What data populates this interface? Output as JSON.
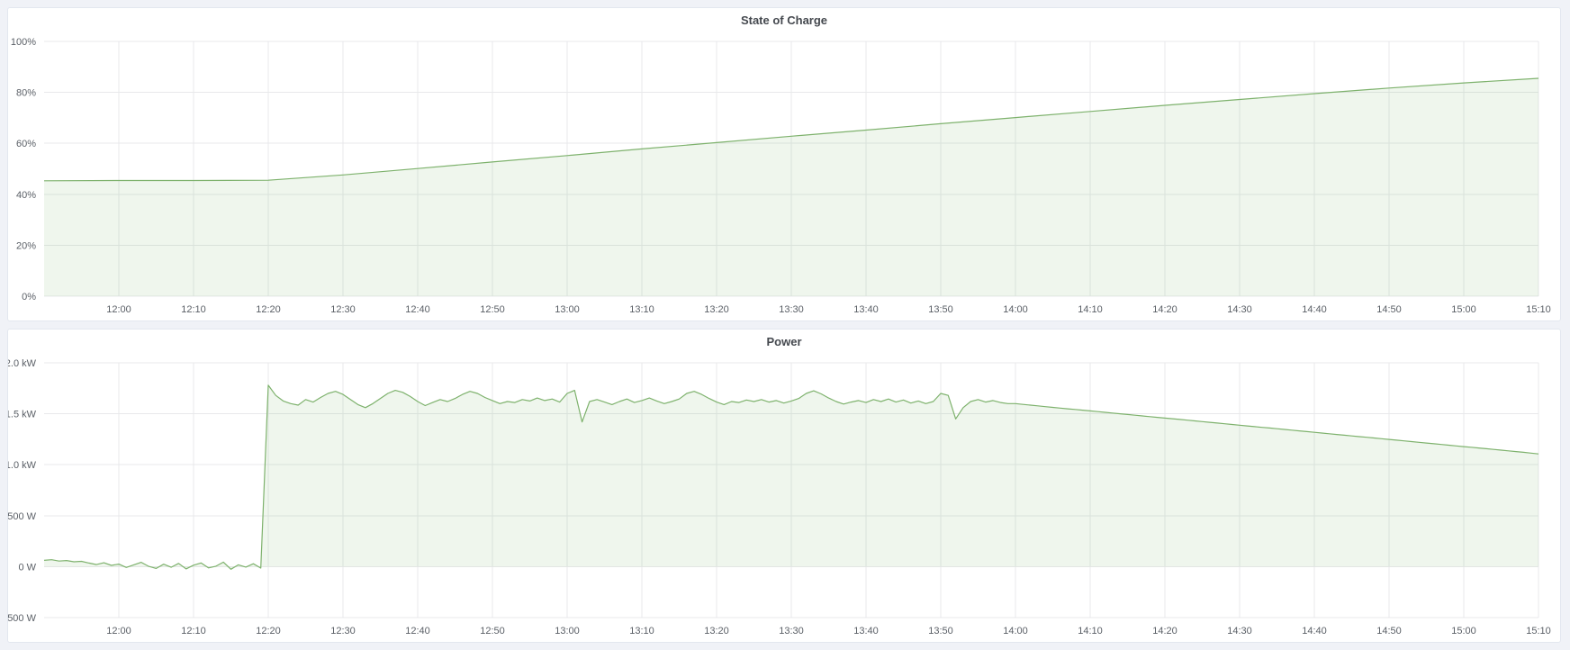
{
  "accent_color": "#7EB26D",
  "chart_data": [
    {
      "type": "area",
      "title": "State of Charge",
      "xlabel": "",
      "ylabel": "",
      "x_start": "11:50",
      "x_end": "15:10",
      "x_tick_labels": [
        "12:00",
        "12:10",
        "12:20",
        "12:30",
        "12:40",
        "12:50",
        "13:00",
        "13:10",
        "13:20",
        "13:30",
        "13:40",
        "13:50",
        "14:00",
        "14:10",
        "14:20",
        "14:30",
        "14:40",
        "14:50",
        "15:00",
        "15:10"
      ],
      "y_range": [
        0,
        100
      ],
      "y_ticks": {
        "labels": [
          "0%",
          "20%",
          "40%",
          "60%",
          "80%",
          "100%"
        ],
        "values": [
          0,
          20,
          40,
          60,
          80,
          100
        ]
      },
      "grid": true,
      "legend": false,
      "series": [
        {
          "name": "State of Charge",
          "unit": "%",
          "t0": "11:50",
          "step_min": 10,
          "color": "#7EB26D",
          "fill_opacity": 0.12,
          "fill_baseline": 0,
          "values": [
            45.3,
            45.4,
            45.4,
            45.5,
            47.6,
            50.1,
            52.7,
            55.2,
            57.8,
            60.3,
            62.8,
            65.2,
            67.7,
            70.1,
            72.5,
            74.9,
            77.2,
            79.5,
            81.7,
            83.7,
            85.5
          ]
        }
      ]
    },
    {
      "type": "area",
      "title": "Power",
      "xlabel": "",
      "ylabel": "",
      "x_start": "11:50",
      "x_end": "15:10",
      "x_tick_labels": [
        "12:00",
        "12:10",
        "12:20",
        "12:30",
        "12:40",
        "12:50",
        "13:00",
        "13:10",
        "13:20",
        "13:30",
        "13:40",
        "13:50",
        "14:00",
        "14:10",
        "14:20",
        "14:30",
        "14:40",
        "14:50",
        "15:00",
        "15:10"
      ],
      "y_range": [
        -500,
        2000
      ],
      "y_ticks": {
        "labels": [
          "-500 W",
          "0 W",
          "500 W",
          "1.0 kW",
          "1.5 kW",
          "2.0 kW"
        ],
        "values": [
          -500,
          0,
          500,
          1000,
          1500,
          2000
        ]
      },
      "grid": true,
      "legend": false,
      "series": [
        {
          "name": "Power",
          "unit": "W",
          "t0": "11:50",
          "step_min": 1,
          "color": "#7EB26D",
          "fill_opacity": 0.12,
          "fill_baseline": 0,
          "values": [
            62,
            68,
            55,
            60,
            48,
            52,
            35,
            20,
            38,
            12,
            25,
            -8,
            18,
            42,
            3,
            -18,
            24,
            -6,
            32,
            -22,
            14,
            36,
            -12,
            4,
            44,
            -26,
            18,
            -4,
            28,
            -14,
            1780,
            1680,
            1625,
            1600,
            1585,
            1640,
            1615,
            1660,
            1700,
            1720,
            1690,
            1640,
            1590,
            1560,
            1600,
            1650,
            1700,
            1730,
            1710,
            1670,
            1620,
            1580,
            1610,
            1640,
            1620,
            1650,
            1690,
            1720,
            1700,
            1660,
            1630,
            1600,
            1620,
            1610,
            1640,
            1625,
            1655,
            1630,
            1645,
            1615,
            1700,
            1730,
            1420,
            1620,
            1640,
            1615,
            1590,
            1620,
            1645,
            1610,
            1630,
            1655,
            1625,
            1600,
            1620,
            1645,
            1700,
            1720,
            1690,
            1650,
            1615,
            1590,
            1620,
            1610,
            1635,
            1620,
            1640,
            1615,
            1630,
            1605,
            1625,
            1650,
            1700,
            1725,
            1695,
            1655,
            1620,
            1595,
            1615,
            1630,
            1610,
            1640,
            1620,
            1645,
            1615,
            1635,
            1605,
            1625,
            1600,
            1620,
            1700,
            1680,
            1450,
            1560,
            1620,
            1640,
            1615,
            1630,
            1610,
            1600,
            1600,
            1592,
            1585,
            1578,
            1570,
            1563,
            1556,
            1549,
            1542,
            1535,
            1528,
            1521,
            1514,
            1507,
            1500,
            1493,
            1486,
            1479,
            1472,
            1465,
            1458,
            1451,
            1444,
            1437,
            1430,
            1423,
            1416,
            1409,
            1402,
            1395,
            1388,
            1381,
            1374,
            1367,
            1360,
            1353,
            1346,
            1339,
            1332,
            1325,
            1318,
            1311,
            1304,
            1297,
            1290,
            1283,
            1276,
            1269,
            1262,
            1255,
            1248,
            1241,
            1234,
            1227,
            1220,
            1213,
            1206,
            1199,
            1192,
            1185,
            1178,
            1171,
            1164,
            1157,
            1150,
            1143,
            1136,
            1129,
            1122,
            1114,
            1106
          ]
        }
      ]
    }
  ]
}
